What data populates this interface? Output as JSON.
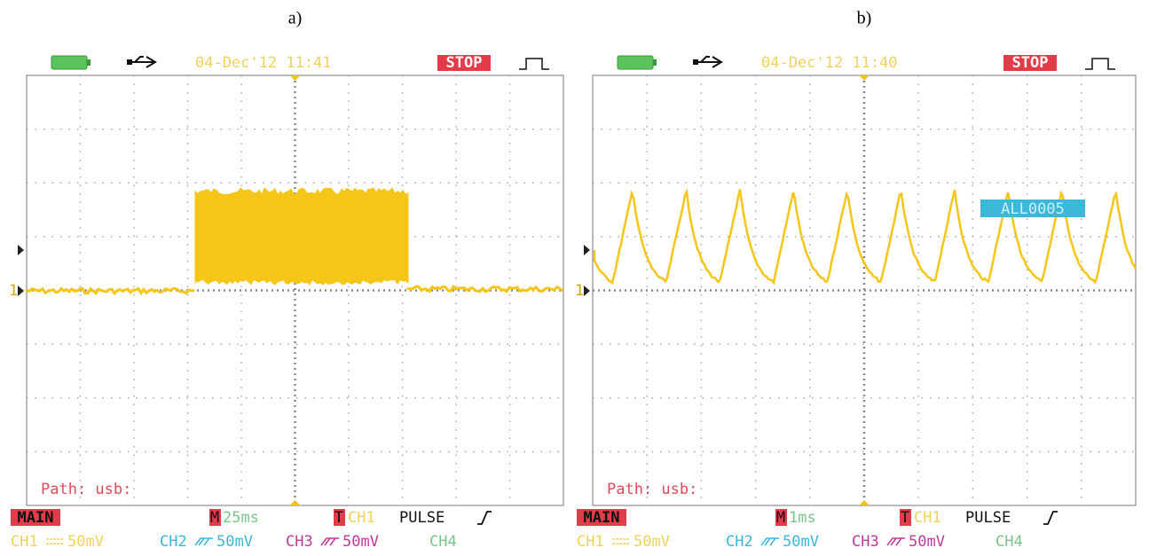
{
  "panels": [
    {
      "caption": "a)",
      "date": "04-Dec'12 11:41",
      "status": "STOP",
      "path": "Path: usb:",
      "ch_marker": "1",
      "mode": "MAIN",
      "timebase_label": "M",
      "timebase": "25ms",
      "trigger_label": "T",
      "trigger_source": "CH1",
      "trigger_type": "PULSE",
      "channels": [
        {
          "name": "CH1",
          "scale": "50mV"
        },
        {
          "name": "CH2",
          "scale": "50mV"
        },
        {
          "name": "CH3",
          "scale": "50mV"
        },
        {
          "name": "CH4"
        }
      ]
    },
    {
      "caption": "b)",
      "date": "04-Dec'12 11:40",
      "status": "STOP",
      "path": "Path: usb:",
      "ch_marker": "1",
      "file_label": "ALL0005",
      "mode": "MAIN",
      "timebase_label": "M",
      "timebase": "1ms",
      "trigger_label": "T",
      "trigger_source": "CH1",
      "trigger_type": "PULSE",
      "channels": [
        {
          "name": "CH1",
          "scale": "50mV"
        },
        {
          "name": "CH2",
          "scale": "50mV"
        },
        {
          "name": "CH3",
          "scale": "50mV"
        },
        {
          "name": "CH4"
        }
      ]
    }
  ]
}
